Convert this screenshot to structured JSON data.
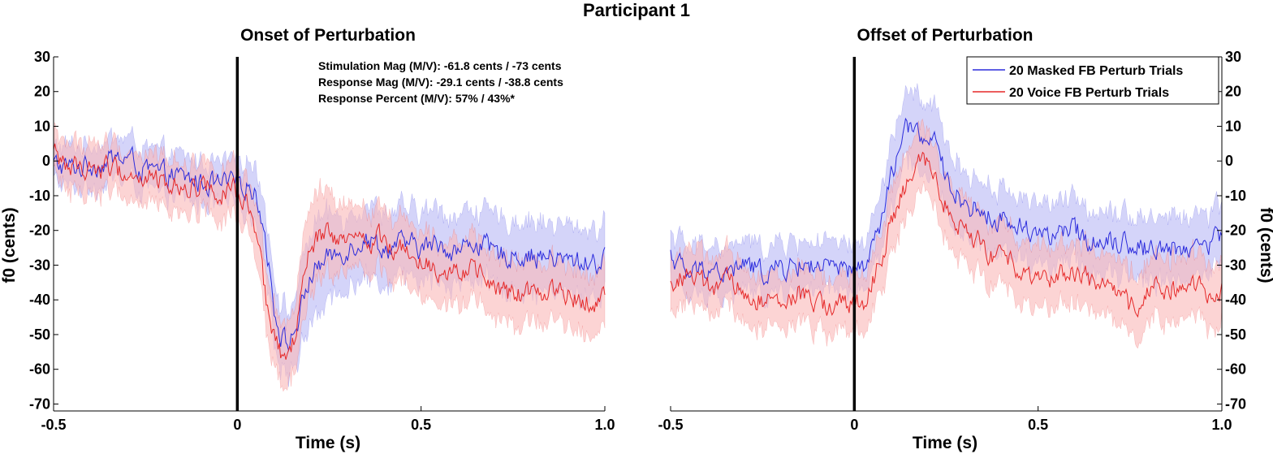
{
  "figure": {
    "title": "Participant 1"
  },
  "chart_data": [
    {
      "type": "line",
      "title": "Onset of Perturbation",
      "xlabel": "Time (s)",
      "ylabel": "f0 (cents)",
      "xlim": [
        -0.5,
        1.0
      ],
      "ylim": [
        -72,
        30
      ],
      "xticks": [
        "-0.5",
        "0",
        "0.5",
        "1.0"
      ],
      "yticks": [
        "30",
        "20",
        "10",
        "0",
        "-10",
        "-20",
        "-30",
        "-40",
        "-50",
        "-60",
        "-70"
      ],
      "y_axis_side": "left",
      "event_line_x": 0,
      "grid": false,
      "annotations": [
        "Stimulation Mag  (M/V): -61.8 cents / -73 cents",
        "Response Mag (M/V): -29.1 cents / -38.8 cents",
        "Response Percent (M/V): 57% / 43%*"
      ],
      "series": [
        {
          "name": "20 Masked FB Perturb Trials",
          "color": "#2b2bdc",
          "band_color": "#b8b8f5",
          "x": [
            -0.5,
            -0.45,
            -0.4,
            -0.35,
            -0.3,
            -0.25,
            -0.2,
            -0.15,
            -0.1,
            -0.05,
            0,
            0.03,
            0.06,
            0.08,
            0.1,
            0.12,
            0.14,
            0.16,
            0.18,
            0.2,
            0.22,
            0.25,
            0.3,
            0.35,
            0.4,
            0.45,
            0.5,
            0.55,
            0.6,
            0.65,
            0.7,
            0.75,
            0.8,
            0.85,
            0.9,
            0.95,
            1.0
          ],
          "y": [
            -1,
            -2,
            -1,
            0,
            1,
            -3,
            -4,
            -5,
            -6,
            -7,
            -7,
            -6,
            -12,
            -25,
            -42,
            -50,
            -53,
            -48,
            -40,
            -33,
            -30,
            -28,
            -25,
            -22,
            -25,
            -24,
            -25,
            -24,
            -26,
            -23,
            -27,
            -27,
            -27,
            -28,
            -29,
            -29,
            -29
          ],
          "band_halfwidth": [
            5,
            6,
            6,
            6,
            6,
            6,
            6,
            6,
            6,
            6,
            7,
            7,
            8,
            9,
            9,
            9,
            9,
            10,
            12,
            13,
            13,
            12,
            10,
            10,
            10,
            10,
            10,
            10,
            10,
            10,
            10,
            10,
            10,
            10,
            10,
            10,
            10
          ]
        },
        {
          "name": "20 Voice FB Perturb Trials",
          "color": "#e52828",
          "band_color": "#fab8b8",
          "x": [
            -0.5,
            -0.45,
            -0.4,
            -0.35,
            -0.3,
            -0.25,
            -0.2,
            -0.15,
            -0.1,
            -0.05,
            0,
            0.03,
            0.06,
            0.08,
            0.1,
            0.12,
            0.14,
            0.16,
            0.18,
            0.2,
            0.22,
            0.25,
            0.3,
            0.35,
            0.4,
            0.45,
            0.5,
            0.55,
            0.6,
            0.65,
            0.7,
            0.75,
            0.8,
            0.85,
            0.9,
            0.95,
            1.0
          ],
          "y": [
            2,
            -2,
            -2,
            -2,
            -4,
            -5,
            -6,
            -7,
            -7,
            -8,
            -9,
            -14,
            -28,
            -42,
            -52,
            -56,
            -56,
            -50,
            -35,
            -25,
            -22,
            -22,
            -24,
            -22,
            -23,
            -26,
            -27,
            -31,
            -30,
            -33,
            -36,
            -39,
            -38,
            -37,
            -38,
            -40,
            -39
          ],
          "band_halfwidth": [
            6,
            7,
            7,
            7,
            7,
            7,
            7,
            7,
            7,
            7,
            7,
            7,
            8,
            9,
            9,
            9,
            9,
            10,
            12,
            13,
            13,
            12,
            9,
            9,
            9,
            9,
            9,
            9,
            9,
            9,
            9,
            9,
            9,
            9,
            9,
            9,
            9
          ]
        }
      ]
    },
    {
      "type": "line",
      "title": "Offset of Perturbation",
      "xlabel": "Time (s)",
      "ylabel": "f0 (cents)",
      "xlim": [
        -0.5,
        1.0
      ],
      "ylim": [
        -72,
        30
      ],
      "xticks": [
        "-0.5",
        "0",
        "0.5",
        "1.0"
      ],
      "yticks": [
        "30",
        "20",
        "10",
        "0",
        "-10",
        "-20",
        "-30",
        "-40",
        "-50",
        "-60",
        "-70"
      ],
      "y_axis_side": "right",
      "event_line_x": 0,
      "grid": false,
      "legend": {
        "position": "top-right",
        "entries": [
          "20 Masked FB Perturb Trials",
          "20 Voice FB Perturb Trials"
        ]
      },
      "series": [
        {
          "name": "20 Masked FB Perturb Trials",
          "color": "#2b2bdc",
          "band_color": "#b8b8f5",
          "x": [
            -0.5,
            -0.45,
            -0.4,
            -0.35,
            -0.3,
            -0.25,
            -0.2,
            -0.15,
            -0.1,
            -0.05,
            0,
            0.03,
            0.06,
            0.08,
            0.1,
            0.12,
            0.14,
            0.16,
            0.18,
            0.2,
            0.22,
            0.25,
            0.3,
            0.35,
            0.4,
            0.45,
            0.5,
            0.55,
            0.6,
            0.65,
            0.7,
            0.75,
            0.8,
            0.85,
            0.9,
            0.95,
            1.0
          ],
          "y": [
            -27,
            -33,
            -30,
            -33,
            -30,
            -32,
            -31,
            -30,
            -30,
            -32,
            -32,
            -30,
            -22,
            -15,
            -5,
            3,
            8,
            9,
            8,
            6,
            4,
            -5,
            -12,
            -15,
            -17,
            -19,
            -20,
            -22,
            -20,
            -23,
            -22,
            -24,
            -25,
            -25,
            -25,
            -24,
            -22
          ],
          "band_halfwidth": [
            7,
            7,
            7,
            7,
            7,
            7,
            7,
            7,
            7,
            7,
            7,
            7,
            8,
            9,
            10,
            10,
            10,
            10,
            10,
            10,
            10,
            10,
            9,
            9,
            9,
            9,
            9,
            9,
            9,
            9,
            9,
            9,
            9,
            9,
            9,
            9,
            9
          ]
        },
        {
          "name": "20 Voice FB Perturb Trials",
          "color": "#e52828",
          "band_color": "#fab8b8",
          "x": [
            -0.5,
            -0.45,
            -0.4,
            -0.35,
            -0.3,
            -0.25,
            -0.2,
            -0.15,
            -0.1,
            -0.05,
            0,
            0.03,
            0.06,
            0.08,
            0.1,
            0.12,
            0.14,
            0.16,
            0.18,
            0.2,
            0.22,
            0.25,
            0.3,
            0.35,
            0.4,
            0.45,
            0.5,
            0.55,
            0.6,
            0.65,
            0.7,
            0.75,
            0.8,
            0.85,
            0.9,
            0.95,
            1.0
          ],
          "y": [
            -36,
            -32,
            -37,
            -35,
            -38,
            -40,
            -42,
            -38,
            -42,
            -41,
            -42,
            -40,
            -32,
            -25,
            -18,
            -12,
            -8,
            -3,
            -1,
            -2,
            -5,
            -12,
            -20,
            -25,
            -29,
            -30,
            -33,
            -33,
            -32,
            -35,
            -38,
            -42,
            -38,
            -36,
            -38,
            -37,
            -36
          ],
          "band_halfwidth": [
            8,
            8,
            8,
            8,
            8,
            8,
            8,
            8,
            8,
            8,
            8,
            8,
            8,
            9,
            9,
            9,
            9,
            9,
            9,
            9,
            9,
            9,
            9,
            9,
            9,
            9,
            9,
            9,
            9,
            9,
            9,
            9,
            9,
            9,
            9,
            9,
            9
          ]
        }
      ]
    }
  ]
}
